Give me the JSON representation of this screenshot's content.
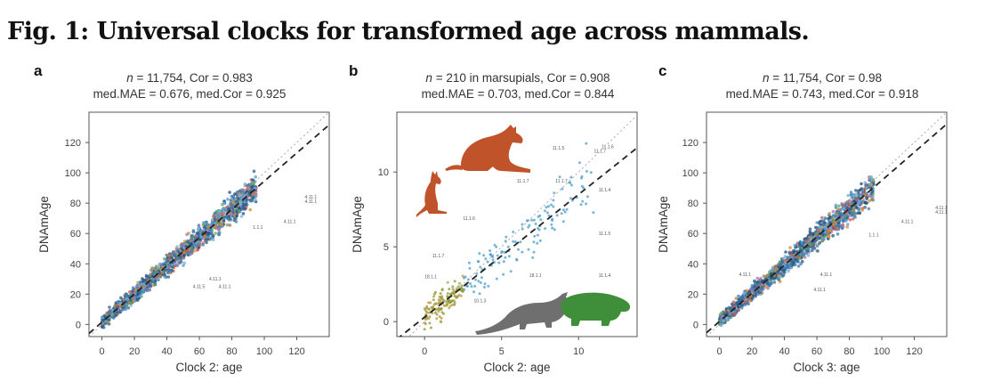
{
  "figure": {
    "title": "Fig. 1: Universal clocks for transformed age across mammals."
  },
  "chart_data": [
    {
      "type": "scatter",
      "panel": "a",
      "stats_line1_n": "n",
      "stats_line1_rest": " = 11,754, Cor = 0.983",
      "stats_line2": "med.MAE = 0.676, med.Cor = 0.925",
      "xlabel": "Clock 2: age",
      "ylabel": "DNAmAge",
      "xlim": [
        -8,
        140
      ],
      "ylim": [
        -8,
        140
      ],
      "xticks": [
        0,
        20,
        40,
        60,
        80,
        100,
        120
      ],
      "yticks": [
        0,
        20,
        40,
        60,
        80,
        100,
        120
      ],
      "fit_line": {
        "slope": 0.93,
        "intercept": 1.5
      },
      "identity_line": true,
      "cluster": {
        "x_max": 95,
        "slope": 0.93,
        "spread": 6,
        "seed": 11
      },
      "annotations": [
        {
          "text": "4.11.1",
          "x": 125,
          "y": 83
        },
        {
          "text": "4.11.1",
          "x": 125,
          "y": 80
        },
        {
          "text": "4.11.1",
          "x": 112,
          "y": 67
        },
        {
          "text": "4.11.1",
          "x": 66,
          "y": 29
        },
        {
          "text": "4.11.5",
          "x": 56,
          "y": 24
        },
        {
          "text": "4.11.1",
          "x": 72,
          "y": 24
        },
        {
          "text": "1.1.1",
          "x": 93,
          "y": 63
        }
      ]
    },
    {
      "type": "scatter",
      "panel": "b",
      "stats_line1_n": "n",
      "stats_line1_rest": " = 210 in marsupials, Cor = 0.908",
      "stats_line2": "med.MAE = 0.703, med.Cor = 0.844",
      "xlabel": "Clock 2: age",
      "ylabel": "DNAmAge",
      "xlim": [
        -1.8,
        13.8
      ],
      "ylim": [
        -1,
        14
      ],
      "xticks": [
        0,
        5,
        10
      ],
      "yticks": [
        0,
        5,
        10
      ],
      "fit_line": {
        "slope": 0.82,
        "intercept": 0.3
      },
      "identity_line": true,
      "cluster": {
        "x_max": 11,
        "slope": 0.85,
        "spread": 1.4,
        "seed": 7
      },
      "annotations": [
        {
          "text": "11.1.5",
          "x": 8.3,
          "y": 11.5
        },
        {
          "text": "11.1.7",
          "x": 11.0,
          "y": 11.3
        },
        {
          "text": "11.1.6",
          "x": 11.5,
          "y": 11.6
        },
        {
          "text": "11.1.7",
          "x": 6.0,
          "y": 9.3
        },
        {
          "text": "11.1.7",
          "x": 8.5,
          "y": 9.3
        },
        {
          "text": "11.1.4",
          "x": 11.3,
          "y": 8.7
        },
        {
          "text": "11.1.6",
          "x": 2.5,
          "y": 6.8
        },
        {
          "text": "11.1.7",
          "x": 0.5,
          "y": 4.3
        },
        {
          "text": "11.1.5",
          "x": 11.3,
          "y": 5.8
        },
        {
          "text": "11.1.4",
          "x": 11.3,
          "y": 3.0
        },
        {
          "text": "18.1.1",
          "x": 6.8,
          "y": 3.0
        },
        {
          "text": "18.1.1",
          "x": 0.0,
          "y": 2.9
        },
        {
          "text": "10.1.3",
          "x": 3.2,
          "y": 1.3
        }
      ]
    },
    {
      "type": "scatter",
      "panel": "c",
      "stats_line1_n": "n",
      "stats_line1_rest": " = 11,754, Cor = 0.98",
      "stats_line2": "med.MAE = 0.743, med.Cor = 0.918",
      "xlabel": "Clock 3: age",
      "ylabel": "DNAmAge",
      "xlim": [
        -8,
        140
      ],
      "ylim": [
        -8,
        140
      ],
      "xticks": [
        0,
        20,
        40,
        60,
        80,
        100,
        120
      ],
      "yticks": [
        0,
        20,
        40,
        60,
        80,
        100,
        120
      ],
      "fit_line": {
        "slope": 0.93,
        "intercept": 2
      },
      "identity_line": true,
      "cluster": {
        "x_max": 95,
        "slope": 0.93,
        "spread": 6,
        "seed": 23
      },
      "annotations": [
        {
          "text": "4.11.1",
          "x": 133,
          "y": 76
        },
        {
          "text": "4.11.1",
          "x": 133,
          "y": 73
        },
        {
          "text": "4.11.1",
          "x": 112,
          "y": 67
        },
        {
          "text": "4.11.1",
          "x": 62,
          "y": 32
        },
        {
          "text": "4.11.1",
          "x": 12,
          "y": 32
        },
        {
          "text": "4.11.1",
          "x": 58,
          "y": 22
        },
        {
          "text": "1.1.1",
          "x": 92,
          "y": 58
        }
      ]
    }
  ]
}
